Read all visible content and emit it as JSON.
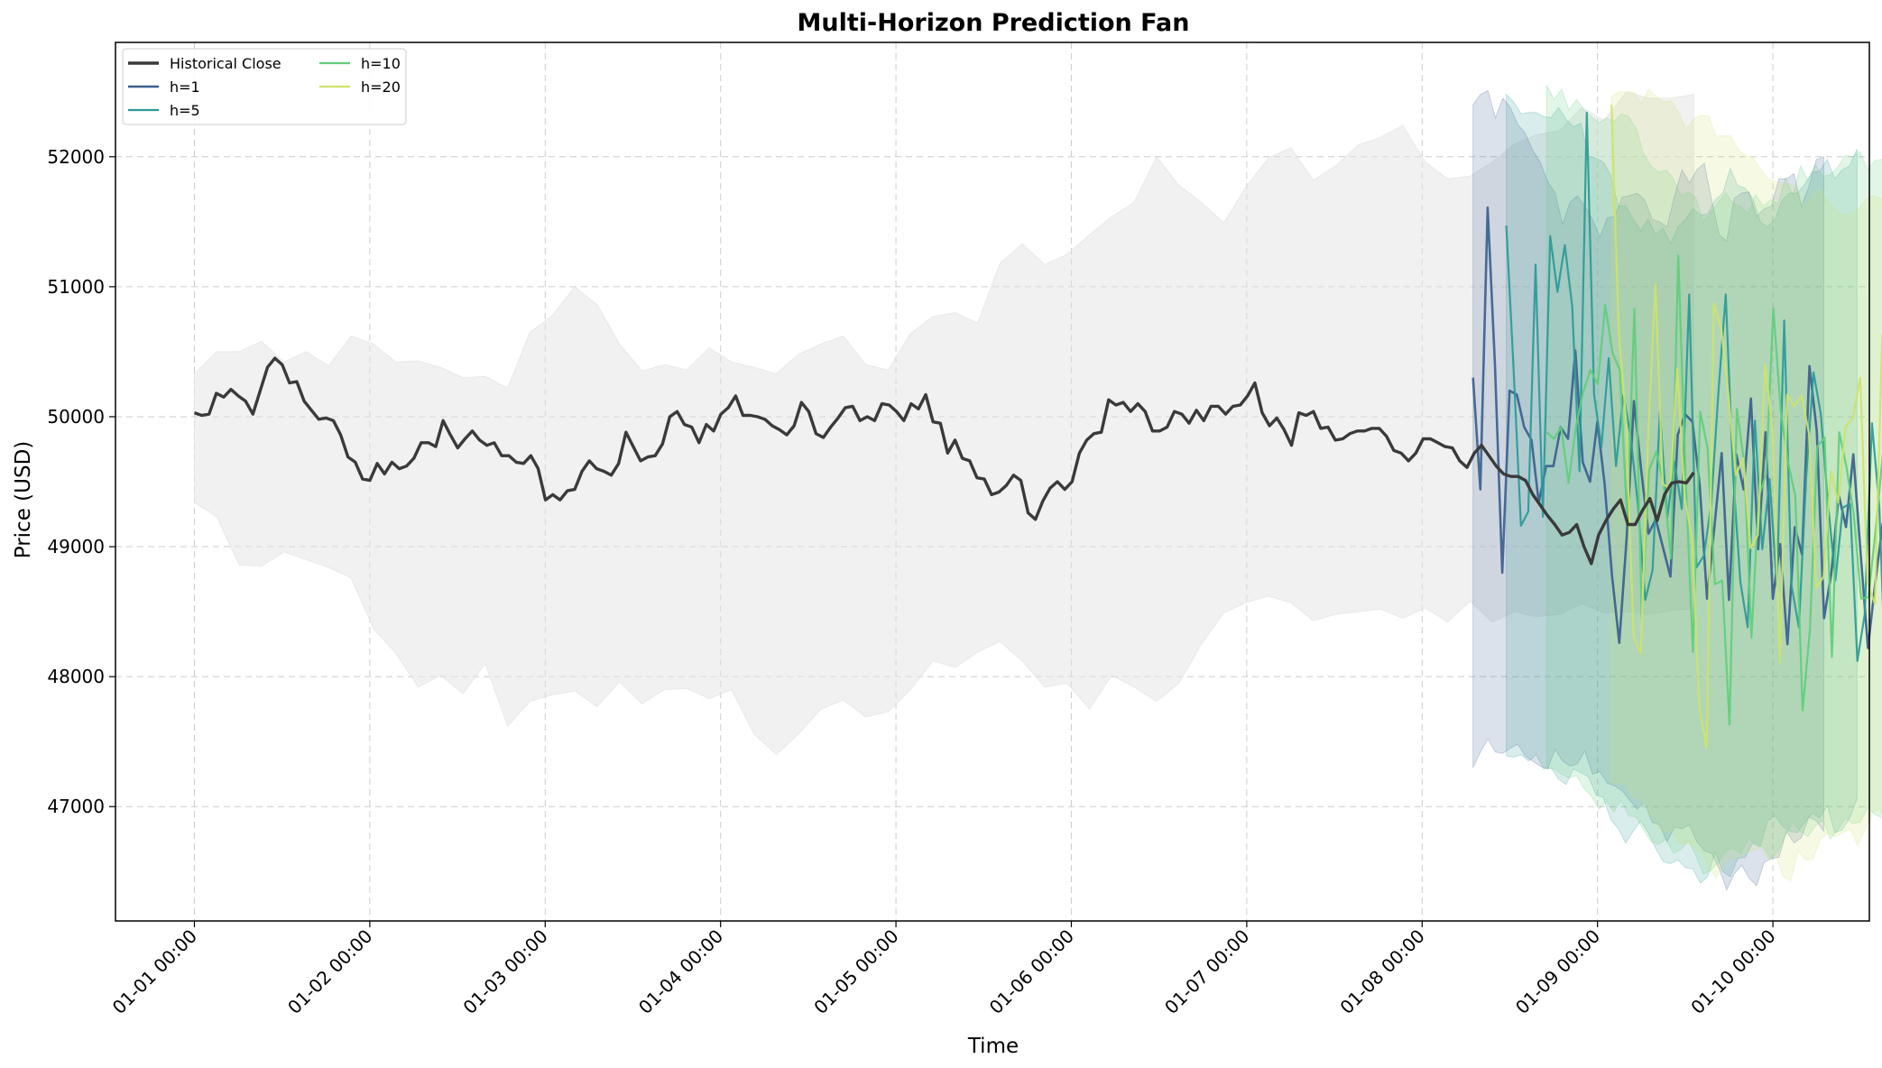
{
  "chart_data": {
    "type": "line",
    "title": "Multi-Horizon Prediction Fan",
    "xlabel": "Time",
    "ylabel": "Price (USD)",
    "x_ticks": [
      "01-01 00:00",
      "01-02 00:00",
      "01-03 00:00",
      "01-04 00:00",
      "01-05 00:00",
      "01-06 00:00",
      "01-07 00:00",
      "01-08 00:00",
      "01-09 00:00",
      "01-10 00:00"
    ],
    "y_ticks": [
      47000,
      48000,
      49000,
      50000,
      51000,
      52000
    ],
    "xlim_days": [
      -0.45,
      9.55
    ],
    "ylim": [
      46120,
      52880
    ],
    "grid": true,
    "legend_position": "top-left",
    "colors": {
      "historical": "#3a3a3a",
      "h1": "#3b5f8e",
      "h5": "#2a9a96",
      "h10": "#5fce7a",
      "h20": "#cde36a",
      "band": "#e3e3e3"
    },
    "historical": {
      "name": "Historical Close",
      "step_days": 0.0417,
      "start_day": 0,
      "values": [
        50030,
        50010,
        50020,
        50180,
        50150,
        50210,
        50160,
        50120,
        50020,
        50200,
        50380,
        50450,
        50400,
        50260,
        50270,
        50120,
        50050,
        49980,
        49990,
        49970,
        49860,
        49690,
        49650,
        49520,
        49510,
        49640,
        49560,
        49650,
        49600,
        49620,
        49680,
        49800,
        49800,
        49770,
        49970,
        49860,
        49760,
        49830,
        49890,
        49820,
        49780,
        49800,
        49700,
        49700,
        49650,
        49640,
        49700,
        49600,
        49360,
        49400,
        49360,
        49430,
        49440,
        49580,
        49660,
        49600,
        49580,
        49550,
        49640,
        49880,
        49770,
        49660,
        49690,
        49700,
        49790,
        50000,
        50040,
        49940,
        49920,
        49800,
        49940,
        49890,
        50020,
        50070,
        50160,
        50010,
        50010,
        50000,
        49980,
        49930,
        49900,
        49860,
        49930,
        50110,
        50040,
        49870,
        49840,
        49920,
        49990,
        50070,
        50080,
        49970,
        50000,
        49970,
        50100,
        50090,
        50040,
        49970,
        50100,
        50060,
        50170,
        49960,
        49950,
        49720,
        49820,
        49680,
        49660,
        49530,
        49520,
        49400,
        49420,
        49470,
        49550,
        49510,
        49260,
        49210,
        49350,
        49450,
        49500,
        49440,
        49500,
        49720,
        49820,
        49870,
        49880,
        50130,
        50090,
        50110,
        50040,
        50100,
        50040,
        49890,
        49890,
        49920,
        50040,
        50020,
        49950,
        50050,
        49970,
        50080,
        50080,
        50020,
        50080,
        50090,
        50160,
        50260,
        50030,
        49930,
        49990,
        49900,
        49780,
        50030,
        50010,
        50040,
        49910,
        49920,
        49820,
        49830,
        49870,
        49890,
        49890,
        49910,
        49910,
        49850,
        49740,
        49720,
        49660,
        49720,
        49830,
        49830,
        49800,
        49770,
        49760,
        49660,
        49610,
        49720,
        49780,
        49700,
        49620,
        49560,
        49540,
        49540,
        49510,
        49400,
        49320,
        49240,
        49170,
        49090,
        49110,
        49170,
        49000,
        48870,
        49090,
        49200,
        49290,
        49360,
        49170,
        49170,
        49280,
        49370,
        49200,
        49400,
        49490,
        49500,
        49490,
        49570
      ]
    },
    "historical_band": {
      "upper": [
        50330,
        50500,
        50500,
        50580,
        50420,
        50500,
        50390,
        50620,
        50560,
        50420,
        50430,
        50380,
        50300,
        50310,
        50220,
        50650,
        50780,
        51000,
        50860,
        50560,
        50350,
        50400,
        50360,
        50530,
        50420,
        50380,
        50330,
        50480,
        50560,
        50620,
        50400,
        50360,
        50640,
        50770,
        50800,
        50720,
        51180,
        51330,
        51170,
        51250,
        51400,
        51540,
        51650,
        52000,
        51780,
        51650,
        51490,
        51770,
        51990,
        52070,
        51820,
        51930,
        52090,
        52150,
        52240,
        51960,
        51830,
        51850,
        51960,
        52100,
        52170,
        52200,
        52380,
        52280,
        52500,
        52450,
        52450,
        52480
      ],
      "lower": [
        49340,
        49230,
        48860,
        48850,
        48960,
        48900,
        48840,
        48760,
        48370,
        48180,
        47920,
        48010,
        47870,
        48100,
        47620,
        47810,
        47860,
        47890,
        47770,
        47960,
        47790,
        47900,
        47910,
        47830,
        47900,
        47560,
        47400,
        47560,
        47750,
        47820,
        47690,
        47730,
        47900,
        48120,
        48070,
        48190,
        48270,
        48120,
        47920,
        47950,
        47750,
        48010,
        47920,
        47810,
        47950,
        48250,
        48490,
        48570,
        48620,
        48570,
        48430,
        48480,
        48500,
        48520,
        48450,
        48530,
        48420,
        48580,
        48420,
        48500,
        48460,
        48480,
        48560,
        48490,
        48500,
        48480,
        48510,
        48520
      ]
    },
    "series": [
      {
        "name": "h=1",
        "color_key": "h1",
        "start_day": 7.29,
        "step_days": 0.0417,
        "values": [
          50300,
          49440,
          51610,
          50400,
          48800,
          50200,
          50170,
          49920,
          49820,
          49340,
          49620,
          49620,
          49920,
          49830,
          50510,
          49650,
          49500,
          49960,
          49480,
          48780,
          48260,
          49060,
          50120,
          49590,
          49100,
          49210,
          48990,
          48770,
          49860,
          50020,
          49960,
          49470,
          48600,
          49150,
          49720,
          48590,
          49710,
          49440,
          50140,
          48980,
          49880,
          48600,
          49020,
          48250,
          49150,
          48940,
          50390,
          49890,
          48450,
          48800,
          49400,
          49150,
          49710,
          48950,
          48220,
          48720,
          49170,
          49340,
          50430,
          49950,
          48120,
          48730,
          49440,
          50370,
          48880,
          49020,
          50080,
          49230,
          48930,
          51130,
          50160,
          48980,
          48900,
          47230
        ]
      },
      {
        "name": "h=5",
        "color_key": "h5",
        "start_day": 7.48,
        "step_days": 0.0417,
        "values": [
          51470,
          50360,
          49160,
          49270,
          51170,
          49230,
          51390,
          50960,
          51320,
          50850,
          49580,
          52340,
          50170,
          49770,
          50450,
          49620,
          50170,
          49850,
          49320,
          48590,
          48820,
          50040,
          49220,
          49650,
          49290,
          50940,
          48840,
          48930,
          49320,
          50190,
          50940,
          49560,
          48730,
          48380,
          49970,
          48980,
          49520,
          48700,
          50740,
          48700,
          48380,
          49540,
          50340,
          50020,
          49320,
          48740,
          49300,
          49330,
          48120,
          48480,
          49950,
          49310,
          47770,
          48030,
          49820,
          47590,
          50710
        ]
      },
      {
        "name": "h=10",
        "color_key": "h10",
        "start_day": 7.71,
        "step_days": 0.0417,
        "values": [
          49880,
          49830,
          49920,
          49490,
          49920,
          50190,
          50360,
          50250,
          50860,
          50490,
          50360,
          49210,
          50830,
          48450,
          49590,
          49730,
          49480,
          48910,
          51240,
          49530,
          48190,
          50040,
          49760,
          48710,
          48740,
          47630,
          50060,
          49650,
          48300,
          49380,
          49560,
          50830,
          50050,
          49650,
          49390,
          47740,
          48360,
          49770,
          49840,
          48150,
          49880,
          49610,
          49240,
          48600,
          48610,
          49140,
          49730,
          50220,
          49160,
          50760,
          48890,
          50290,
          48670,
          49940,
          50580,
          50310,
          48900,
          50280,
          48970,
          50790,
          49410,
          50120,
          48020,
          50020,
          49310,
          47110,
          49970,
          48740
        ]
      },
      {
        "name": "h=20",
        "color_key": "h20",
        "start_day": 8.08,
        "step_days": 0.0417,
        "values": [
          52400,
          50650,
          49960,
          48310,
          48180,
          49860,
          51020,
          49480,
          49450,
          50370,
          49370,
          49070,
          47770,
          47450,
          50870,
          50680,
          50160,
          49550,
          49680,
          48990,
          49090,
          50400,
          49900,
          48110,
          50170,
          50080,
          50160,
          49870,
          48680,
          48770,
          49580,
          49340,
          49920,
          49990,
          50300,
          48720,
          48560,
          50620,
          50240,
          50230,
          50120,
          49760,
          49710,
          48830,
          48650,
          48300,
          48290,
          47970,
          49070,
          50140,
          48500,
          49210,
          51020,
          49840,
          49300,
          46960,
          49840,
          50300,
          50000,
          50570,
          49900,
          49070,
          49100,
          50900,
          52040,
          50110,
          48840
        ]
      }
    ],
    "horizon_bands": [
      {
        "color_key": "h1",
        "start_day": 7.29,
        "end_day": 9.29,
        "upper": [
          52400,
          52480,
          52510,
          52300,
          52450,
          52380,
          52250,
          52180,
          52050,
          51960,
          51810,
          51720,
          51480,
          51650,
          51700,
          51620,
          51520,
          51380,
          51530,
          51540,
          51690,
          51700,
          51720,
          51670,
          51520,
          51500,
          51460,
          51700,
          51900,
          51800,
          51900,
          51950,
          51660,
          51400,
          51350,
          51680,
          51720,
          51730,
          51540,
          51600,
          51620,
          51830,
          51830,
          51870,
          51620,
          51770,
          51980,
          52000
        ],
        "lower": [
          47300,
          47420,
          47520,
          47420,
          47410,
          47450,
          47480,
          47390,
          47350,
          47310,
          47290,
          47440,
          47350,
          47310,
          47330,
          47430,
          47250,
          47270,
          47180,
          47160,
          47120,
          47050,
          46980,
          47030,
          46880,
          46860,
          46730,
          46840,
          46830,
          46860,
          46730,
          46660,
          46640,
          46520,
          46360,
          46480,
          46550,
          46450,
          46390,
          46570,
          46600,
          46610,
          46810,
          46720,
          46760,
          46920,
          46890,
          46810
        ]
      },
      {
        "color_key": "h5",
        "start_day": 7.48,
        "end_day": 9.48,
        "upper": [
          52480,
          52420,
          52330,
          52340,
          52340,
          52310,
          52300,
          52380,
          52290,
          52230,
          52260,
          52000,
          51990,
          51960,
          51860,
          51620,
          51620,
          51520,
          51430,
          51520,
          51400,
          51450,
          51330,
          51460,
          51520,
          51600,
          51550,
          51560,
          51670,
          51720,
          51910,
          51780,
          51760,
          51680,
          51500,
          51460,
          51520,
          51670,
          51720,
          51720,
          51790,
          51880,
          51890,
          51980,
          51830,
          51900,
          51930,
          52060
        ],
        "lower": [
          47390,
          47380,
          47400,
          47350,
          47400,
          47290,
          47300,
          47210,
          47170,
          47290,
          47260,
          47230,
          47090,
          47070,
          46900,
          46830,
          46720,
          46810,
          46890,
          46800,
          46680,
          46580,
          46560,
          46590,
          46530,
          46520,
          46410,
          46460,
          46650,
          46500,
          46460,
          46600,
          46610,
          46720,
          46690,
          46890,
          46930,
          46850,
          46810,
          46800,
          46880,
          46950,
          46910,
          47010,
          46800,
          46820,
          46910,
          47060
        ]
      },
      {
        "color_key": "h10",
        "start_day": 7.71,
        "end_day": 9.71,
        "upper": [
          52550,
          52440,
          52520,
          52360,
          52440,
          52360,
          52310,
          52260,
          52300,
          52270,
          52330,
          52310,
          52220,
          52020,
          51930,
          51880,
          51900,
          51830,
          51700,
          51730,
          51680,
          51500,
          51570,
          51650,
          51720,
          51640,
          51620,
          51560,
          51710,
          51620,
          51670,
          51640,
          51840,
          51700,
          51930,
          51820,
          51940,
          51850,
          51860,
          51920,
          52010,
          52000,
          52040,
          51900,
          51970,
          51980,
          52010,
          52040
        ],
        "lower": [
          47290,
          47290,
          47250,
          47220,
          47240,
          47140,
          47080,
          46980,
          47040,
          46960,
          47050,
          46930,
          46920,
          46820,
          46730,
          46710,
          46750,
          46640,
          46670,
          46740,
          46620,
          46480,
          46510,
          46570,
          46660,
          46680,
          46640,
          46750,
          46720,
          46690,
          46600,
          46650,
          46780,
          46880,
          46810,
          46770,
          46850,
          46900,
          46750,
          46820,
          46910,
          46870,
          46880,
          46990,
          46940,
          46910,
          46970,
          47010
        ]
      },
      {
        "color_key": "h20",
        "start_day": 8.08,
        "end_day": 10.08,
        "upper": [
          52460,
          52500,
          52500,
          52500,
          52410,
          52520,
          52460,
          52420,
          52430,
          52340,
          52210,
          52290,
          52320,
          52310,
          52160,
          52160,
          52160,
          52050,
          52010,
          51990,
          51900,
          51830,
          51810,
          51790,
          51790,
          51740,
          51600,
          51720,
          51750,
          51660,
          51600,
          51550,
          51560,
          51580,
          51670,
          51700,
          51680,
          51600,
          51800,
          51830,
          51910,
          51970,
          52040,
          51990,
          51890,
          51850,
          51880,
          51930
        ],
        "lower": [
          47180,
          47190,
          47170,
          47070,
          47060,
          46960,
          46850,
          46800,
          46830,
          46720,
          46720,
          46690,
          46650,
          46530,
          46450,
          46560,
          46610,
          46610,
          46640,
          46660,
          46690,
          46590,
          46630,
          46460,
          46430,
          46660,
          46590,
          46600,
          46750,
          46800,
          46770,
          46800,
          46830,
          46700,
          46830,
          46960,
          46980,
          46840,
          46750,
          46830,
          46770,
          46760,
          46820,
          46930,
          46960,
          46940,
          47080,
          47090
        ]
      }
    ]
  }
}
